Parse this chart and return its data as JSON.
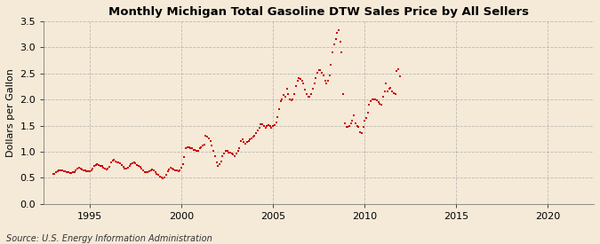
{
  "title": "Monthly Michigan Total Gasoline DTW Sales Price by All Sellers",
  "ylabel": "Dollars per Gallon",
  "source": "Source: U.S. Energy Information Administration",
  "xlim": [
    1992.5,
    2022.5
  ],
  "ylim": [
    0.0,
    3.5
  ],
  "yticks": [
    0.0,
    0.5,
    1.0,
    1.5,
    2.0,
    2.5,
    3.0,
    3.5
  ],
  "xticks": [
    1995,
    2000,
    2005,
    2010,
    2015,
    2020
  ],
  "marker_color": "#cc0000",
  "bg_color": "#f5ead8",
  "grid_color": "#999999",
  "data": [
    [
      1993.0,
      0.57
    ],
    [
      1993.083,
      0.58
    ],
    [
      1993.167,
      0.6
    ],
    [
      1993.25,
      0.62
    ],
    [
      1993.333,
      0.64
    ],
    [
      1993.417,
      0.65
    ],
    [
      1993.5,
      0.64
    ],
    [
      1993.583,
      0.63
    ],
    [
      1993.667,
      0.62
    ],
    [
      1993.75,
      0.61
    ],
    [
      1993.833,
      0.6
    ],
    [
      1993.917,
      0.59
    ],
    [
      1994.0,
      0.59
    ],
    [
      1994.083,
      0.6
    ],
    [
      1994.167,
      0.61
    ],
    [
      1994.25,
      0.64
    ],
    [
      1994.333,
      0.67
    ],
    [
      1994.417,
      0.69
    ],
    [
      1994.5,
      0.68
    ],
    [
      1994.583,
      0.66
    ],
    [
      1994.667,
      0.65
    ],
    [
      1994.75,
      0.64
    ],
    [
      1994.833,
      0.63
    ],
    [
      1994.917,
      0.62
    ],
    [
      1995.0,
      0.62
    ],
    [
      1995.083,
      0.64
    ],
    [
      1995.167,
      0.67
    ],
    [
      1995.25,
      0.72
    ],
    [
      1995.333,
      0.75
    ],
    [
      1995.417,
      0.76
    ],
    [
      1995.5,
      0.74
    ],
    [
      1995.583,
      0.73
    ],
    [
      1995.667,
      0.72
    ],
    [
      1995.75,
      0.7
    ],
    [
      1995.833,
      0.68
    ],
    [
      1995.917,
      0.66
    ],
    [
      1996.0,
      0.67
    ],
    [
      1996.083,
      0.71
    ],
    [
      1996.167,
      0.79
    ],
    [
      1996.25,
      0.83
    ],
    [
      1996.333,
      0.84
    ],
    [
      1996.417,
      0.81
    ],
    [
      1996.5,
      0.8
    ],
    [
      1996.583,
      0.79
    ],
    [
      1996.667,
      0.77
    ],
    [
      1996.75,
      0.74
    ],
    [
      1996.833,
      0.71
    ],
    [
      1996.917,
      0.68
    ],
    [
      1997.0,
      0.68
    ],
    [
      1997.083,
      0.7
    ],
    [
      1997.167,
      0.72
    ],
    [
      1997.25,
      0.76
    ],
    [
      1997.333,
      0.78
    ],
    [
      1997.417,
      0.79
    ],
    [
      1997.5,
      0.77
    ],
    [
      1997.583,
      0.75
    ],
    [
      1997.667,
      0.73
    ],
    [
      1997.75,
      0.71
    ],
    [
      1997.833,
      0.68
    ],
    [
      1997.917,
      0.64
    ],
    [
      1998.0,
      0.61
    ],
    [
      1998.083,
      0.61
    ],
    [
      1998.167,
      0.61
    ],
    [
      1998.25,
      0.63
    ],
    [
      1998.333,
      0.65
    ],
    [
      1998.417,
      0.66
    ],
    [
      1998.5,
      0.64
    ],
    [
      1998.583,
      0.61
    ],
    [
      1998.667,
      0.58
    ],
    [
      1998.75,
      0.56
    ],
    [
      1998.833,
      0.53
    ],
    [
      1998.917,
      0.51
    ],
    [
      1999.0,
      0.49
    ],
    [
      1999.083,
      0.51
    ],
    [
      1999.167,
      0.56
    ],
    [
      1999.25,
      0.63
    ],
    [
      1999.333,
      0.66
    ],
    [
      1999.417,
      0.69
    ],
    [
      1999.5,
      0.68
    ],
    [
      1999.583,
      0.66
    ],
    [
      1999.667,
      0.65
    ],
    [
      1999.75,
      0.64
    ],
    [
      1999.833,
      0.63
    ],
    [
      1999.917,
      0.64
    ],
    [
      2000.0,
      0.69
    ],
    [
      2000.083,
      0.76
    ],
    [
      2000.167,
      0.89
    ],
    [
      2000.25,
      1.06
    ],
    [
      2000.333,
      1.09
    ],
    [
      2000.417,
      1.08
    ],
    [
      2000.5,
      1.07
    ],
    [
      2000.583,
      1.06
    ],
    [
      2000.667,
      1.04
    ],
    [
      2000.75,
      1.03
    ],
    [
      2000.833,
      1.02
    ],
    [
      2000.917,
      1.01
    ],
    [
      2001.0,
      1.06
    ],
    [
      2001.083,
      1.09
    ],
    [
      2001.167,
      1.11
    ],
    [
      2001.25,
      1.13
    ],
    [
      2001.333,
      1.31
    ],
    [
      2001.417,
      1.29
    ],
    [
      2001.5,
      1.26
    ],
    [
      2001.583,
      1.21
    ],
    [
      2001.667,
      1.11
    ],
    [
      2001.75,
      1.01
    ],
    [
      2001.833,
      0.91
    ],
    [
      2001.917,
      0.79
    ],
    [
      2002.0,
      0.73
    ],
    [
      2002.083,
      0.76
    ],
    [
      2002.167,
      0.81
    ],
    [
      2002.25,
      0.91
    ],
    [
      2002.333,
      0.96
    ],
    [
      2002.417,
      1.01
    ],
    [
      2002.5,
      1.01
    ],
    [
      2002.583,
      0.99
    ],
    [
      2002.667,
      0.98
    ],
    [
      2002.75,
      0.96
    ],
    [
      2002.833,
      0.94
    ],
    [
      2002.917,
      0.91
    ],
    [
      2003.0,
      0.96
    ],
    [
      2003.083,
      1.01
    ],
    [
      2003.167,
      1.06
    ],
    [
      2003.25,
      1.21
    ],
    [
      2003.333,
      1.23
    ],
    [
      2003.417,
      1.19
    ],
    [
      2003.5,
      1.16
    ],
    [
      2003.583,
      1.19
    ],
    [
      2003.667,
      1.21
    ],
    [
      2003.75,
      1.23
    ],
    [
      2003.833,
      1.26
    ],
    [
      2003.917,
      1.29
    ],
    [
      2004.0,
      1.31
    ],
    [
      2004.083,
      1.36
    ],
    [
      2004.167,
      1.41
    ],
    [
      2004.25,
      1.46
    ],
    [
      2004.333,
      1.53
    ],
    [
      2004.417,
      1.53
    ],
    [
      2004.5,
      1.49
    ],
    [
      2004.583,
      1.46
    ],
    [
      2004.667,
      1.49
    ],
    [
      2004.75,
      1.51
    ],
    [
      2004.833,
      1.49
    ],
    [
      2004.917,
      1.46
    ],
    [
      2005.0,
      1.49
    ],
    [
      2005.083,
      1.51
    ],
    [
      2005.167,
      1.56
    ],
    [
      2005.25,
      1.66
    ],
    [
      2005.333,
      1.81
    ],
    [
      2005.417,
      1.96
    ],
    [
      2005.5,
      2.01
    ],
    [
      2005.583,
      2.09
    ],
    [
      2005.667,
      2.06
    ],
    [
      2005.75,
      2.21
    ],
    [
      2005.833,
      2.11
    ],
    [
      2005.917,
      2.01
    ],
    [
      2006.0,
      1.98
    ],
    [
      2006.083,
      2.01
    ],
    [
      2006.167,
      2.11
    ],
    [
      2006.25,
      2.26
    ],
    [
      2006.333,
      2.36
    ],
    [
      2006.417,
      2.41
    ],
    [
      2006.5,
      2.39
    ],
    [
      2006.583,
      2.36
    ],
    [
      2006.667,
      2.31
    ],
    [
      2006.75,
      2.19
    ],
    [
      2006.833,
      2.11
    ],
    [
      2006.917,
      2.06
    ],
    [
      2007.0,
      2.06
    ],
    [
      2007.083,
      2.11
    ],
    [
      2007.167,
      2.21
    ],
    [
      2007.25,
      2.31
    ],
    [
      2007.333,
      2.41
    ],
    [
      2007.417,
      2.51
    ],
    [
      2007.5,
      2.56
    ],
    [
      2007.583,
      2.56
    ],
    [
      2007.667,
      2.51
    ],
    [
      2007.75,
      2.46
    ],
    [
      2007.833,
      2.36
    ],
    [
      2007.917,
      2.31
    ],
    [
      2008.0,
      2.36
    ],
    [
      2008.083,
      2.46
    ],
    [
      2008.167,
      2.66
    ],
    [
      2008.25,
      2.9
    ],
    [
      2008.333,
      3.05
    ],
    [
      2008.417,
      3.15
    ],
    [
      2008.5,
      3.28
    ],
    [
      2008.583,
      3.33
    ],
    [
      2008.667,
      3.1
    ],
    [
      2008.75,
      2.9
    ],
    [
      2008.833,
      2.1
    ],
    [
      2008.917,
      1.55
    ],
    [
      2009.0,
      1.48
    ],
    [
      2009.083,
      1.47
    ],
    [
      2009.167,
      1.5
    ],
    [
      2009.25,
      1.55
    ],
    [
      2009.333,
      1.6
    ],
    [
      2009.417,
      1.7
    ],
    [
      2009.5,
      1.55
    ],
    [
      2009.583,
      1.5
    ],
    [
      2009.667,
      1.48
    ],
    [
      2009.75,
      1.38
    ],
    [
      2009.833,
      1.35
    ],
    [
      2009.917,
      1.48
    ],
    [
      2010.0,
      1.6
    ],
    [
      2010.083,
      1.65
    ],
    [
      2010.167,
      1.75
    ],
    [
      2010.25,
      1.9
    ],
    [
      2010.333,
      1.96
    ],
    [
      2010.417,
      2.0
    ],
    [
      2010.5,
      2.0
    ],
    [
      2010.583,
      2.0
    ],
    [
      2010.667,
      1.98
    ],
    [
      2010.75,
      1.95
    ],
    [
      2010.833,
      1.92
    ],
    [
      2010.917,
      1.9
    ],
    [
      2011.0,
      2.05
    ],
    [
      2011.083,
      2.15
    ],
    [
      2011.167,
      2.3
    ],
    [
      2011.25,
      2.15
    ],
    [
      2011.333,
      2.2
    ],
    [
      2011.417,
      2.22
    ],
    [
      2011.5,
      2.15
    ],
    [
      2011.583,
      2.12
    ],
    [
      2011.667,
      2.1
    ],
    [
      2011.75,
      2.55
    ],
    [
      2011.833,
      2.58
    ],
    [
      2011.917,
      2.45
    ]
  ]
}
